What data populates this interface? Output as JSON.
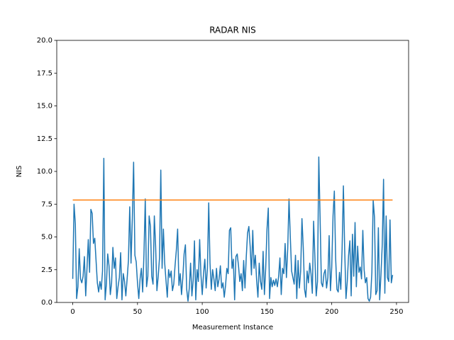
{
  "chart_data": {
    "type": "line",
    "title": "RADAR NIS",
    "x_label": "Measurement Instance",
    "y_label": "NIS",
    "xlim": [
      -12.35,
      259.35
    ],
    "ylim": [
      0,
      20
    ],
    "xticks": [
      0,
      50,
      100,
      150,
      200,
      250
    ],
    "yticks": [
      {
        "value": 0,
        "label": "0.0"
      },
      2.5,
      {
        "value": 5,
        "label": "5.0"
      },
      7.5,
      {
        "value": 10,
        "label": "10.0"
      },
      12.5,
      {
        "value": 15,
        "label": "15.0"
      },
      17.5,
      {
        "value": 20,
        "label": "20.0"
      }
    ],
    "series": [
      {
        "color": "#1f77b4",
        "x": [
          0,
          1,
          2,
          3,
          4,
          5,
          6,
          7,
          8,
          9,
          10,
          11,
          12,
          13,
          14,
          15,
          16,
          17,
          18,
          19,
          20,
          21,
          22,
          23,
          24,
          25,
          26,
          27,
          28,
          29,
          30,
          31,
          32,
          33,
          34,
          35,
          36,
          37,
          38,
          39,
          40,
          41,
          42,
          43,
          44,
          45,
          46,
          47,
          48,
          49,
          50,
          51,
          52,
          53,
          54,
          55,
          56,
          57,
          58,
          59,
          60,
          61,
          62,
          63,
          64,
          65,
          66,
          67,
          68,
          69,
          70,
          71,
          72,
          73,
          74,
          75,
          76,
          77,
          78,
          79,
          80,
          81,
          82,
          83,
          84,
          85,
          86,
          87,
          88,
          89,
          90,
          91,
          92,
          93,
          94,
          95,
          96,
          97,
          98,
          99,
          100,
          101,
          102,
          103,
          104,
          105,
          106,
          107,
          108,
          109,
          110,
          111,
          112,
          113,
          114,
          115,
          116,
          117,
          118,
          119,
          120,
          121,
          122,
          123,
          124,
          125,
          126,
          127,
          128,
          129,
          130,
          131,
          132,
          133,
          134,
          135,
          136,
          137,
          138,
          139,
          140,
          141,
          142,
          143,
          144,
          145,
          146,
          147,
          148,
          149,
          150,
          151,
          152,
          153,
          154,
          155,
          156,
          157,
          158,
          159,
          160,
          161,
          162,
          163,
          164,
          165,
          166,
          167,
          168,
          169,
          170,
          171,
          172,
          173,
          174,
          175,
          176,
          177,
          178,
          179,
          180,
          181,
          182,
          183,
          184,
          185,
          186,
          187,
          188,
          189,
          190,
          191,
          192,
          193,
          194,
          195,
          196,
          197,
          198,
          199,
          200,
          201,
          202,
          203,
          204,
          205,
          206,
          207,
          208,
          209,
          210,
          211,
          212,
          213,
          214,
          215,
          216,
          217,
          218,
          219,
          220,
          221,
          222,
          223,
          224,
          225,
          226,
          227,
          228,
          229,
          230,
          231,
          232,
          233,
          234,
          235,
          236,
          237,
          238,
          239,
          240,
          241,
          242,
          243,
          244,
          245,
          246,
          247
        ],
        "values": [
          1.8,
          7.5,
          6.0,
          0.3,
          1.2,
          4.1,
          1.8,
          1.5,
          2.0,
          3.5,
          0.5,
          2.6,
          4.8,
          2.3,
          7.1,
          6.8,
          4.5,
          4.9,
          3.2,
          1.5,
          0.8,
          1.6,
          1.0,
          2.4,
          11.0,
          0.2,
          1.4,
          3.7,
          2.8,
          0.6,
          1.5,
          4.2,
          2.6,
          3.4,
          0.3,
          1.2,
          1.9,
          3.8,
          0.2,
          2.2,
          1.6,
          0.5,
          1.8,
          3.2,
          7.3,
          3.0,
          6.4,
          10.7,
          3.6,
          3.1,
          1.5,
          0.3,
          1.8,
          2.6,
          0.8,
          3.7,
          7.9,
          1.2,
          2.0,
          6.6,
          5.8,
          2.0,
          1.4,
          6.6,
          4.3,
          0.9,
          2.0,
          3.4,
          10.1,
          2.6,
          5.6,
          3.0,
          1.7,
          0.4,
          2.5,
          1.9,
          2.4,
          0.9,
          1.4,
          2.8,
          4.0,
          5.6,
          1.3,
          2.2,
          0.6,
          1.9,
          3.7,
          4.4,
          1.0,
          0.1,
          1.1,
          3.0,
          0.5,
          1.7,
          4.7,
          0.2,
          2.5,
          1.6,
          4.8,
          2.1,
          0.6,
          2.2,
          3.3,
          1.1,
          2.6,
          7.6,
          3.0,
          1.0,
          2.5,
          1.8,
          0.9,
          2.6,
          1.2,
          1.8,
          2.8,
          1.1,
          1.5,
          0.4,
          1.3,
          2.6,
          2.2,
          5.5,
          5.7,
          2.6,
          3.3,
          0.2,
          3.5,
          3.7,
          2.8,
          1.6,
          2.2,
          0.9,
          3.2,
          1.1,
          3.5,
          5.3,
          5.8,
          4.3,
          2.1,
          5.5,
          2.6,
          3.6,
          1.7,
          0.4,
          3.0,
          1.6,
          1.0,
          3.9,
          0.6,
          2.6,
          5.6,
          7.2,
          0.3,
          1.9,
          1.2,
          1.7,
          1.3,
          1.8,
          1.2,
          2.0,
          3.4,
          0.6,
          2.6,
          2.2,
          4.5,
          1.9,
          4.1,
          7.9,
          5.0,
          2.4,
          1.9,
          1.4,
          3.6,
          0.3,
          3.2,
          1.1,
          2.4,
          6.4,
          4.2,
          1.0,
          0.4,
          2.4,
          1.5,
          3.0,
          2.2,
          0.7,
          6.2,
          3.4,
          0.5,
          1.6,
          11.1,
          6.5,
          1.5,
          1.2,
          2.2,
          2.5,
          1.1,
          1.9,
          5.1,
          0.9,
          2.7,
          6.6,
          8.5,
          3.4,
          1.0,
          0.8,
          2.3,
          1.0,
          4.1,
          8.9,
          4.0,
          0.3,
          1.6,
          3.6,
          4.7,
          0.5,
          5.2,
          2.0,
          6.1,
          1.2,
          4.3,
          2.3,
          2.7,
          1.8,
          5.5,
          2.5,
          1.5,
          1.9,
          0.3,
          0.1,
          0.4,
          2.3,
          7.8,
          6.5,
          0.6,
          0.9,
          5.7,
          0.2,
          2.1,
          4.4,
          9.4,
          0.7,
          6.6,
          1.9,
          1.6,
          6.3,
          1.5,
          2.1
        ]
      },
      {
        "color": "#ff7f0e",
        "x": [
          0,
          247
        ],
        "values": [
          7.815,
          7.815
        ]
      }
    ]
  }
}
